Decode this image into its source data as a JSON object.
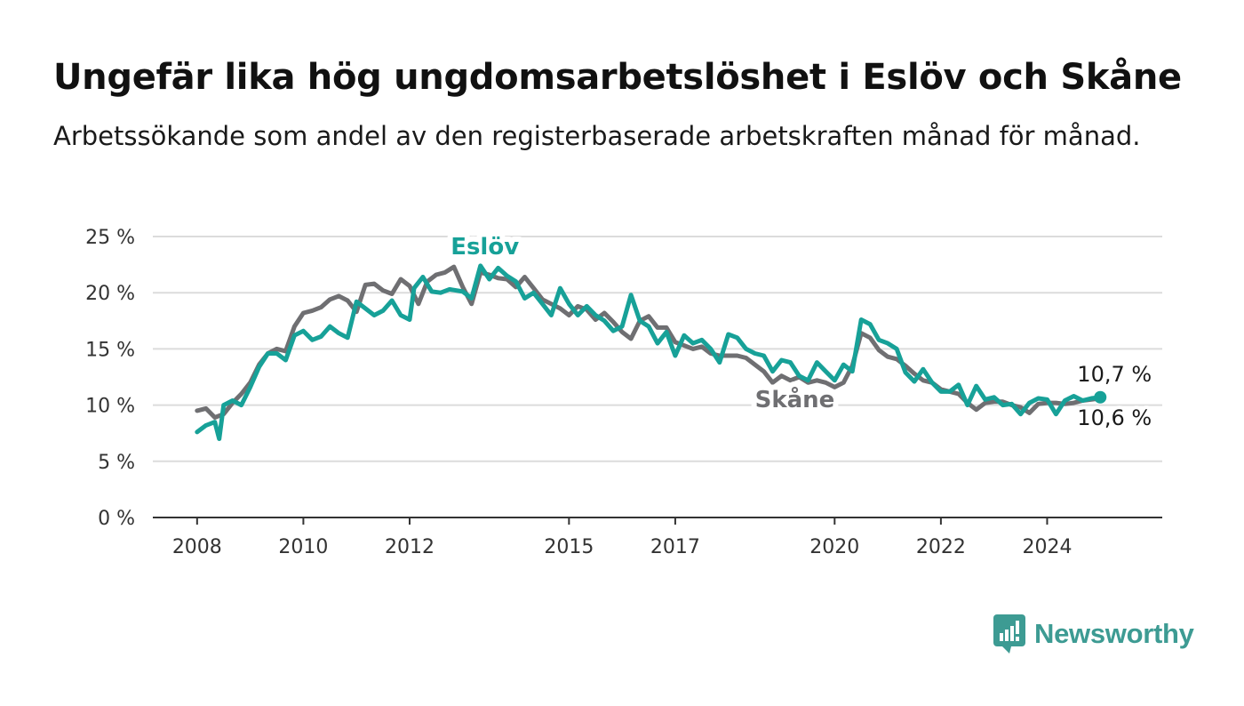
{
  "title": "Ungefär lika hög ungdomsarbetslöshet i Eslöv och Skåne",
  "subtitle": "Arbetssökande som andel av den registerbaserade arbetskraften månad för månad.",
  "brand": {
    "name": "Newsworthy",
    "icon": "newsworthy-logo-icon",
    "color": "#3d9b93"
  },
  "chart_data": {
    "type": "line",
    "title": "Ungefär lika hög ungdomsarbetslöshet i Eslöv och Skåne",
    "subtitle": "Arbetssökande som andel av den registerbaserade arbetskraften månad för månad.",
    "xlabel": "",
    "ylabel": "",
    "ylim": [
      0,
      25
    ],
    "xlim": [
      "2007-03",
      "2026-03"
    ],
    "y_ticks": [
      "0 %",
      "5 %",
      "10 %",
      "15 %",
      "20 %",
      "25 %"
    ],
    "x_ticks": [
      "2008",
      "2010",
      "2012",
      "2015",
      "2017",
      "2020",
      "2022",
      "2024"
    ],
    "grid": "horizontal",
    "legend": "inline labels",
    "series": [
      {
        "name": "Skåne",
        "color": "#6f6f72",
        "end_label": "10,6 %",
        "points": [
          [
            "2008-01",
            9.5
          ],
          [
            "2008-03",
            9.7
          ],
          [
            "2008-05",
            8.9
          ],
          [
            "2008-07",
            9.2
          ],
          [
            "2008-09",
            10.2
          ],
          [
            "2008-11",
            11.0
          ],
          [
            "2009-01",
            12.0
          ],
          [
            "2009-03",
            13.6
          ],
          [
            "2009-05",
            14.6
          ],
          [
            "2009-07",
            15.0
          ],
          [
            "2009-09",
            14.8
          ],
          [
            "2009-11",
            17.0
          ],
          [
            "2010-01",
            18.2
          ],
          [
            "2010-03",
            18.4
          ],
          [
            "2010-05",
            18.7
          ],
          [
            "2010-07",
            19.4
          ],
          [
            "2010-09",
            19.7
          ],
          [
            "2010-11",
            19.3
          ],
          [
            "2011-01",
            18.3
          ],
          [
            "2011-03",
            20.7
          ],
          [
            "2011-05",
            20.8
          ],
          [
            "2011-07",
            20.2
          ],
          [
            "2011-09",
            19.9
          ],
          [
            "2011-11",
            21.2
          ],
          [
            "2012-01",
            20.6
          ],
          [
            "2012-03",
            19.0
          ],
          [
            "2012-05",
            21.0
          ],
          [
            "2012-07",
            21.6
          ],
          [
            "2012-09",
            21.8
          ],
          [
            "2012-11",
            22.3
          ],
          [
            "2013-01",
            20.5
          ],
          [
            "2013-03",
            19.0
          ],
          [
            "2013-05",
            21.8
          ],
          [
            "2013-07",
            21.6
          ],
          [
            "2013-09",
            21.3
          ],
          [
            "2013-11",
            21.2
          ],
          [
            "2014-01",
            20.5
          ],
          [
            "2014-03",
            21.4
          ],
          [
            "2014-05",
            20.4
          ],
          [
            "2014-07",
            19.4
          ],
          [
            "2014-09",
            19.0
          ],
          [
            "2014-11",
            18.6
          ],
          [
            "2015-01",
            18.0
          ],
          [
            "2015-03",
            18.8
          ],
          [
            "2015-05",
            18.5
          ],
          [
            "2015-07",
            17.6
          ],
          [
            "2015-09",
            18.2
          ],
          [
            "2015-11",
            17.4
          ],
          [
            "2016-01",
            16.5
          ],
          [
            "2016-03",
            15.9
          ],
          [
            "2016-05",
            17.5
          ],
          [
            "2016-07",
            17.9
          ],
          [
            "2016-09",
            16.9
          ],
          [
            "2016-11",
            16.9
          ],
          [
            "2017-01",
            15.6
          ],
          [
            "2017-03",
            15.3
          ],
          [
            "2017-05",
            15.0
          ],
          [
            "2017-07",
            15.2
          ],
          [
            "2017-09",
            14.6
          ],
          [
            "2017-11",
            14.4
          ],
          [
            "2018-01",
            14.4
          ],
          [
            "2018-03",
            14.4
          ],
          [
            "2018-05",
            14.2
          ],
          [
            "2018-07",
            13.6
          ],
          [
            "2018-09",
            13.0
          ],
          [
            "2018-11",
            12.0
          ],
          [
            "2019-01",
            12.6
          ],
          [
            "2019-03",
            12.2
          ],
          [
            "2019-05",
            12.5
          ],
          [
            "2019-07",
            12.0
          ],
          [
            "2019-09",
            12.2
          ],
          [
            "2019-11",
            12.0
          ],
          [
            "2020-01",
            11.6
          ],
          [
            "2020-03",
            12.0
          ],
          [
            "2020-05",
            13.5
          ],
          [
            "2020-07",
            16.4
          ],
          [
            "2020-09",
            16.0
          ],
          [
            "2020-11",
            14.9
          ],
          [
            "2021-01",
            14.3
          ],
          [
            "2021-03",
            14.1
          ],
          [
            "2021-05",
            13.5
          ],
          [
            "2021-07",
            12.8
          ],
          [
            "2021-09",
            12.2
          ],
          [
            "2021-11",
            12.0
          ],
          [
            "2022-01",
            11.4
          ],
          [
            "2022-03",
            11.2
          ],
          [
            "2022-05",
            11.0
          ],
          [
            "2022-07",
            10.2
          ],
          [
            "2022-09",
            9.6
          ],
          [
            "2022-11",
            10.2
          ],
          [
            "2023-01",
            10.3
          ],
          [
            "2023-03",
            10.3
          ],
          [
            "2023-05",
            10.0
          ],
          [
            "2023-07",
            9.8
          ],
          [
            "2023-09",
            9.3
          ],
          [
            "2023-11",
            10.1
          ],
          [
            "2024-01",
            10.2
          ],
          [
            "2024-03",
            10.2
          ],
          [
            "2024-05",
            10.1
          ],
          [
            "2024-07",
            10.2
          ],
          [
            "2024-09",
            10.4
          ],
          [
            "2024-11",
            10.5
          ],
          [
            "2025-01",
            10.6
          ]
        ]
      },
      {
        "name": "Eslöv",
        "color": "#17a198",
        "end_label": "10,7 %",
        "points": [
          [
            "2008-01",
            7.6
          ],
          [
            "2008-03",
            8.2
          ],
          [
            "2008-05",
            8.5
          ],
          [
            "2008-06",
            7.0
          ],
          [
            "2008-07",
            10.0
          ],
          [
            "2008-09",
            10.4
          ],
          [
            "2008-11",
            10.0
          ],
          [
            "2009-01",
            11.6
          ],
          [
            "2009-03",
            13.4
          ],
          [
            "2009-05",
            14.6
          ],
          [
            "2009-07",
            14.6
          ],
          [
            "2009-09",
            14.0
          ],
          [
            "2009-11",
            16.2
          ],
          [
            "2010-01",
            16.6
          ],
          [
            "2010-03",
            15.8
          ],
          [
            "2010-05",
            16.1
          ],
          [
            "2010-07",
            17.0
          ],
          [
            "2010-09",
            16.4
          ],
          [
            "2010-11",
            16.0
          ],
          [
            "2011-01",
            19.2
          ],
          [
            "2011-03",
            18.6
          ],
          [
            "2011-05",
            18.0
          ],
          [
            "2011-07",
            18.4
          ],
          [
            "2011-09",
            19.3
          ],
          [
            "2011-11",
            18.0
          ],
          [
            "2012-01",
            17.6
          ],
          [
            "2012-02",
            20.4
          ],
          [
            "2012-04",
            21.4
          ],
          [
            "2012-06",
            20.1
          ],
          [
            "2012-08",
            20.0
          ],
          [
            "2012-10",
            20.3
          ],
          [
            "2013-01",
            20.1
          ],
          [
            "2013-03",
            19.5
          ],
          [
            "2013-05",
            22.4
          ],
          [
            "2013-07",
            21.2
          ],
          [
            "2013-09",
            22.2
          ],
          [
            "2013-11",
            21.5
          ],
          [
            "2014-01",
            21.0
          ],
          [
            "2014-03",
            19.5
          ],
          [
            "2014-05",
            20.0
          ],
          [
            "2014-07",
            19.0
          ],
          [
            "2014-09",
            18.0
          ],
          [
            "2014-11",
            20.4
          ],
          [
            "2015-01",
            19.0
          ],
          [
            "2015-03",
            18.0
          ],
          [
            "2015-05",
            18.8
          ],
          [
            "2015-07",
            18.0
          ],
          [
            "2015-09",
            17.5
          ],
          [
            "2015-11",
            16.6
          ],
          [
            "2016-01",
            17.0
          ],
          [
            "2016-03",
            19.8
          ],
          [
            "2016-05",
            17.5
          ],
          [
            "2016-07",
            17.0
          ],
          [
            "2016-09",
            15.5
          ],
          [
            "2016-11",
            16.5
          ],
          [
            "2017-01",
            14.4
          ],
          [
            "2017-03",
            16.2
          ],
          [
            "2017-05",
            15.5
          ],
          [
            "2017-07",
            15.8
          ],
          [
            "2017-09",
            15.0
          ],
          [
            "2017-11",
            13.8
          ],
          [
            "2018-01",
            16.3
          ],
          [
            "2018-03",
            16.0
          ],
          [
            "2018-05",
            15.0
          ],
          [
            "2018-07",
            14.6
          ],
          [
            "2018-09",
            14.4
          ],
          [
            "2018-11",
            13.0
          ],
          [
            "2019-01",
            14.0
          ],
          [
            "2019-03",
            13.8
          ],
          [
            "2019-05",
            12.6
          ],
          [
            "2019-07",
            12.2
          ],
          [
            "2019-09",
            13.8
          ],
          [
            "2019-11",
            13.0
          ],
          [
            "2020-01",
            12.2
          ],
          [
            "2020-03",
            13.6
          ],
          [
            "2020-05",
            13.0
          ],
          [
            "2020-07",
            17.6
          ],
          [
            "2020-09",
            17.2
          ],
          [
            "2020-11",
            15.8
          ],
          [
            "2021-01",
            15.5
          ],
          [
            "2021-03",
            15.0
          ],
          [
            "2021-05",
            12.9
          ],
          [
            "2021-07",
            12.1
          ],
          [
            "2021-09",
            13.2
          ],
          [
            "2021-11",
            12.0
          ],
          [
            "2022-01",
            11.2
          ],
          [
            "2022-03",
            11.2
          ],
          [
            "2022-05",
            11.8
          ],
          [
            "2022-07",
            10.0
          ],
          [
            "2022-09",
            11.7
          ],
          [
            "2022-11",
            10.5
          ],
          [
            "2023-01",
            10.7
          ],
          [
            "2023-03",
            10.0
          ],
          [
            "2023-05",
            10.1
          ],
          [
            "2023-07",
            9.2
          ],
          [
            "2023-09",
            10.2
          ],
          [
            "2023-11",
            10.6
          ],
          [
            "2024-01",
            10.5
          ],
          [
            "2024-03",
            9.2
          ],
          [
            "2024-05",
            10.4
          ],
          [
            "2024-07",
            10.8
          ],
          [
            "2024-09",
            10.4
          ],
          [
            "2024-11",
            10.6
          ],
          [
            "2025-01",
            10.7
          ]
        ]
      }
    ]
  }
}
